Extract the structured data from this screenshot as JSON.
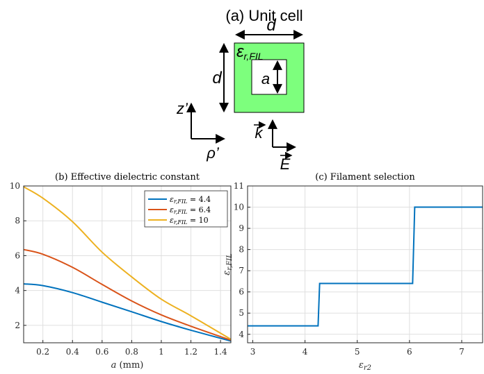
{
  "unit_cell": {
    "title": "(a) Unit cell",
    "label_d_top": "d",
    "label_d_left": "d",
    "label_eps_main": "ε",
    "label_eps_sub": "r,FIL",
    "label_a": "a",
    "axis_z": "z’",
    "axis_rho": "ρ’",
    "label_k": "k",
    "label_E": "E",
    "fill_color": "#7dff7d"
  },
  "chart_data": [
    {
      "type": "line",
      "title": "(b) Effective dielectric constant",
      "xlabel": "a (mm)",
      "ylabel": "",
      "xlim": [
        0.07,
        1.47
      ],
      "ylim": [
        1,
        10
      ],
      "xticks": [
        0.2,
        0.4,
        0.6,
        0.8,
        1,
        1.2,
        1.4
      ],
      "xtick_labels": [
        "0.2",
        "0.4",
        "0.6",
        "0.8",
        "1",
        "1.2",
        "1.4"
      ],
      "yticks": [
        2,
        4,
        6,
        8,
        10
      ],
      "ytick_labels": [
        "2",
        "4",
        "6",
        "8",
        "10"
      ],
      "grid": true,
      "legend_position": "top-right",
      "x": [
        0.07,
        0.2,
        0.4,
        0.6,
        0.8,
        1.0,
        1.2,
        1.47
      ],
      "series": [
        {
          "name": "ε_{r,FIL} = 4.4",
          "legend_main": "ε",
          "legend_sub": "r,FIL",
          "legend_value": " = 4.4",
          "color": "#0072bd",
          "values": [
            4.38,
            4.28,
            3.88,
            3.33,
            2.78,
            2.22,
            1.72,
            1.1
          ]
        },
        {
          "name": "ε_{r,FIL} = 6.4",
          "legend_main": "ε",
          "legend_sub": "r,FIL",
          "legend_value": " = 6.4",
          "color": "#d95319",
          "values": [
            6.35,
            6.08,
            5.33,
            4.35,
            3.4,
            2.6,
            1.95,
            1.15
          ]
        },
        {
          "name": "ε_{r,FIL} = 10",
          "legend_main": "ε",
          "legend_sub": "r,FIL",
          "legend_value": " = 10",
          "color": "#edb120",
          "values": [
            9.95,
            9.3,
            7.95,
            6.2,
            4.78,
            3.5,
            2.55,
            1.2
          ]
        }
      ]
    },
    {
      "type": "line",
      "title": "(c) Filament selection",
      "xlabel": "ε",
      "xlabel_sub": "r2",
      "ylabel": "ε",
      "ylabel_sub": "r,FIL",
      "xlim": [
        2.9,
        7.4
      ],
      "ylim": [
        3.6,
        11
      ],
      "xticks": [
        3,
        4,
        5,
        6,
        7
      ],
      "xtick_labels": [
        "3",
        "4",
        "5",
        "6",
        "7"
      ],
      "yticks": [
        4,
        5,
        6,
        7,
        8,
        9,
        10,
        11
      ],
      "ytick_labels": [
        "4",
        "5",
        "6",
        "7",
        "8",
        "9",
        "10",
        "11"
      ],
      "grid": true,
      "color": "#0072bd",
      "x": [
        2.9,
        4.25,
        4.28,
        6.06,
        6.1,
        7.4
      ],
      "y": [
        4.4,
        4.4,
        6.4,
        6.4,
        10,
        10
      ]
    }
  ]
}
